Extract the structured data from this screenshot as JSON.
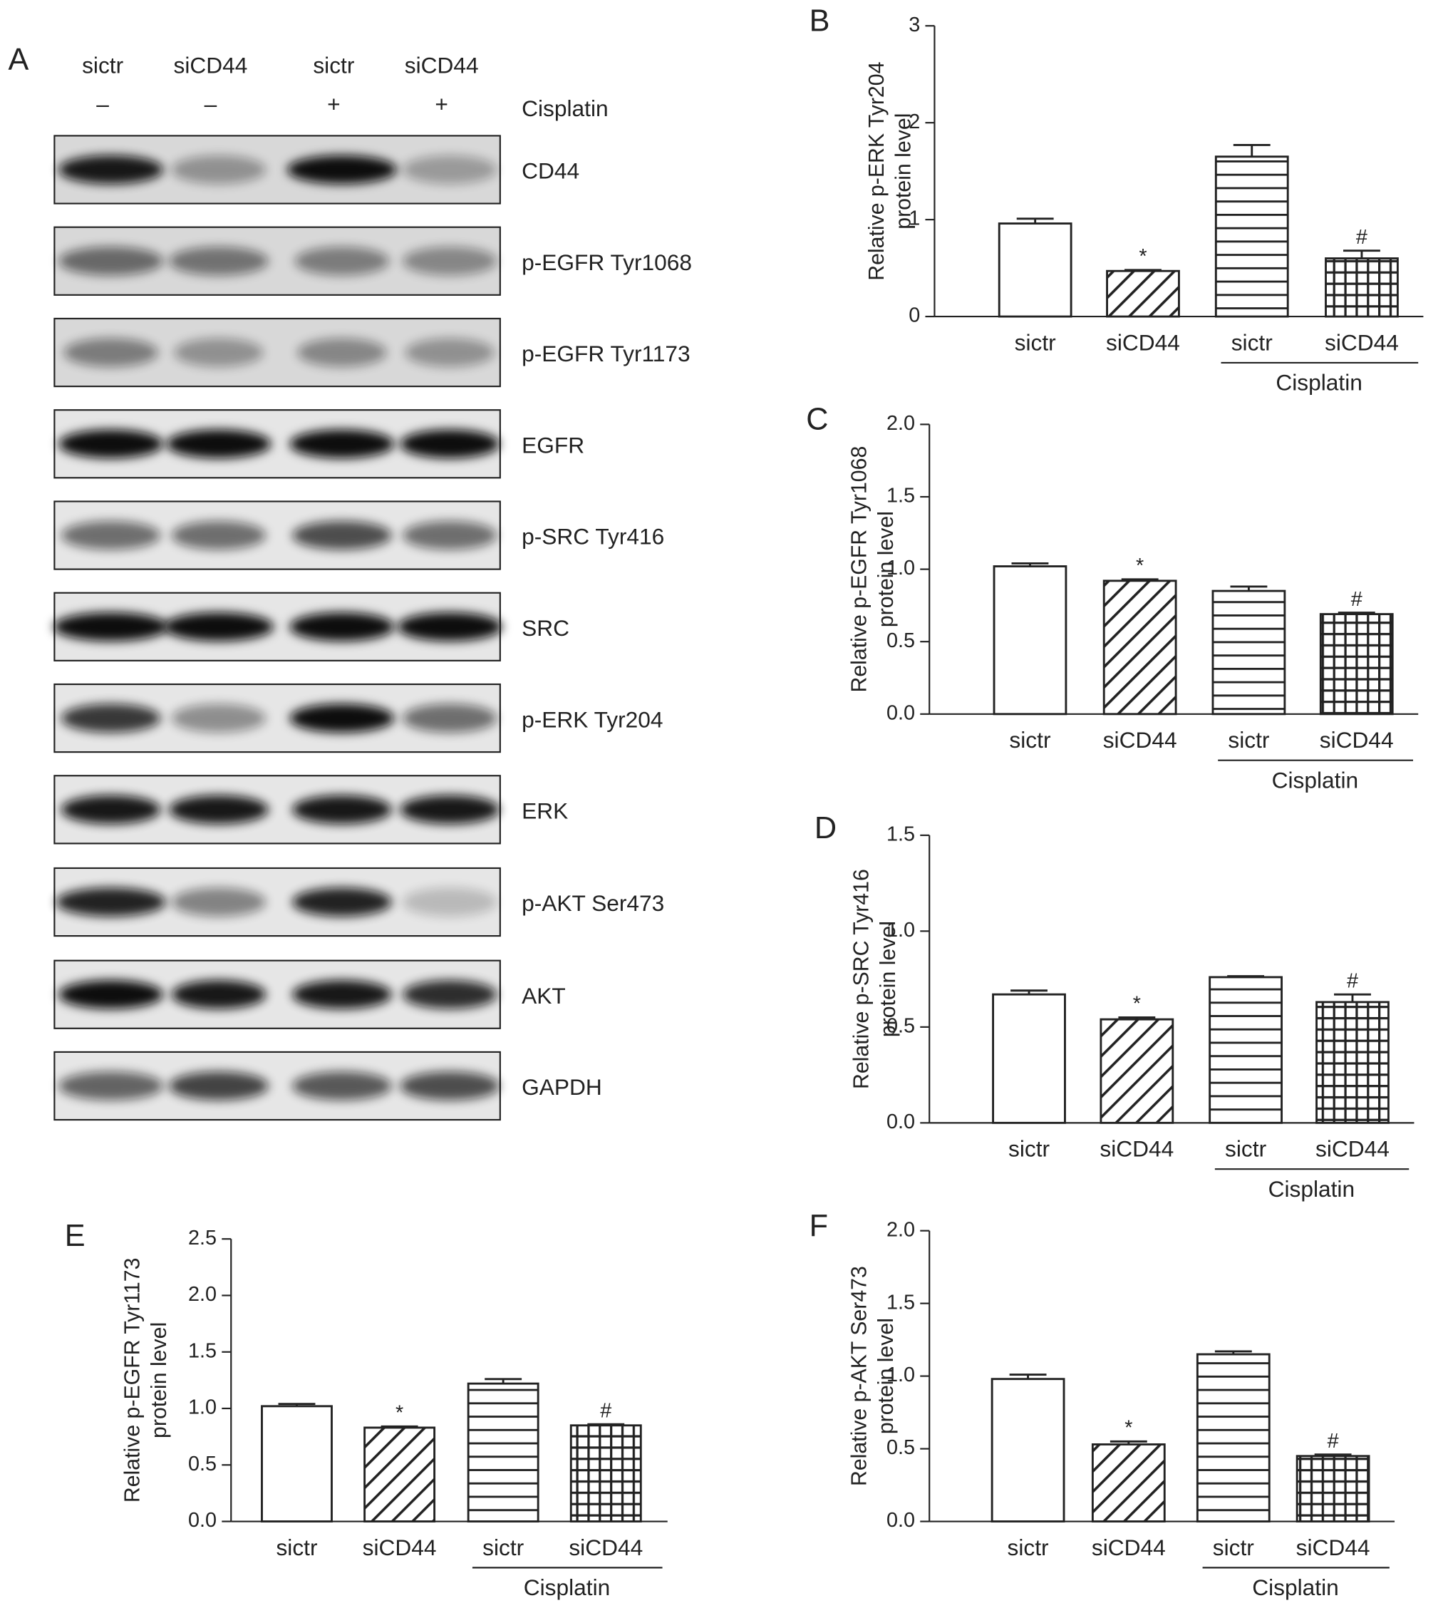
{
  "blot": {
    "panel": "A",
    "lanes": [
      {
        "sirna": "sictr",
        "cisplatin": "–"
      },
      {
        "sirna": "siCD44",
        "cisplatin": "–"
      },
      {
        "sirna": "sictr",
        "cisplatin": "+"
      },
      {
        "sirna": "siCD44",
        "cisplatin": "+"
      }
    ],
    "treatment_label": "Cisplatin",
    "rows": [
      "CD44",
      "p-EGFR Tyr1068",
      "p-EGFR Tyr1173",
      "EGFR",
      "p-SRC Tyr416",
      "SRC",
      "p-ERK Tyr204",
      "ERK",
      "p-AKT Ser473",
      "AKT",
      "GAPDH"
    ]
  },
  "chart_data": [
    {
      "type": "bar",
      "panel": "B",
      "ylabel": [
        "Relative p-ERK Tyr204",
        "protein level"
      ],
      "categories": [
        "sictr",
        "siCD44",
        "sictr",
        "siCD44"
      ],
      "group_label": "Cisplatin",
      "values": [
        0.96,
        0.47,
        1.65,
        0.6
      ],
      "errors": [
        0.05,
        0.01,
        0.12,
        0.08
      ],
      "annotations": [
        null,
        "*",
        null,
        "#"
      ],
      "patterns": [
        "none",
        "diagonal",
        "horizontal",
        "grid"
      ],
      "color": "#222222",
      "ylim": [
        0,
        3
      ],
      "yticks": [
        0,
        1,
        2,
        3
      ]
    },
    {
      "type": "bar",
      "panel": "C",
      "ylabel": [
        "Relative p-EGFR Tyr1068",
        "protein level"
      ],
      "categories": [
        "sictr",
        "siCD44",
        "sictr",
        "siCD44"
      ],
      "group_label": "Cisplatin",
      "values": [
        1.02,
        0.92,
        0.85,
        0.69
      ],
      "errors": [
        0.02,
        0.01,
        0.03,
        0.01
      ],
      "annotations": [
        null,
        "*",
        null,
        "#"
      ],
      "patterns": [
        "none",
        "diagonal",
        "horizontal",
        "grid"
      ],
      "color": "#222222",
      "ylim": [
        0,
        2
      ],
      "yticks": [
        {
          "value": 0,
          "label": "0.0"
        },
        0.5,
        {
          "value": 1,
          "label": "1.0"
        },
        1.5,
        {
          "value": 2,
          "label": "2.0"
        }
      ]
    },
    {
      "type": "bar",
      "panel": "D",
      "ylabel": [
        "Relative p-SRC Tyr416",
        "protein level"
      ],
      "categories": [
        "sictr",
        "siCD44",
        "sictr",
        "siCD44"
      ],
      "group_label": "Cisplatin",
      "values": [
        0.67,
        0.54,
        0.76,
        0.63
      ],
      "errors": [
        0.02,
        0.01,
        0.005,
        0.04
      ],
      "annotations": [
        null,
        "*",
        null,
        "#"
      ],
      "patterns": [
        "none",
        "diagonal",
        "horizontal",
        "grid"
      ],
      "color": "#222222",
      "ylim": [
        0,
        1.5
      ],
      "yticks": [
        {
          "value": 0,
          "label": "0.0"
        },
        0.5,
        {
          "value": 1,
          "label": "1.0"
        },
        1.5
      ]
    },
    {
      "type": "bar",
      "panel": "E",
      "ylabel": [
        "Relative p-EGFR Tyr1173",
        "protein level"
      ],
      "categories": [
        "sictr",
        "siCD44",
        "sictr",
        "siCD44"
      ],
      "group_label": "Cisplatin",
      "values": [
        1.02,
        0.83,
        1.22,
        0.85
      ],
      "errors": [
        0.02,
        0.01,
        0.04,
        0.01
      ],
      "annotations": [
        null,
        "*",
        null,
        "#"
      ],
      "patterns": [
        "none",
        "diagonal",
        "horizontal",
        "grid"
      ],
      "color": "#222222",
      "ylim": [
        0,
        2.5
      ],
      "yticks": [
        {
          "value": 0,
          "label": "0.0"
        },
        0.5,
        {
          "value": 1,
          "label": "1.0"
        },
        1.5,
        {
          "value": 2,
          "label": "2.0"
        },
        2.5
      ]
    },
    {
      "type": "bar",
      "panel": "F",
      "ylabel": [
        "Relative p-AKT Ser473",
        "protein level"
      ],
      "categories": [
        "sictr",
        "siCD44",
        "sictr",
        "siCD44"
      ],
      "group_label": "Cisplatin",
      "values": [
        0.98,
        0.53,
        1.15,
        0.45
      ],
      "errors": [
        0.03,
        0.02,
        0.02,
        0.01
      ],
      "annotations": [
        null,
        "*",
        null,
        "#"
      ],
      "patterns": [
        "none",
        "diagonal",
        "horizontal",
        "grid"
      ],
      "color": "#222222",
      "ylim": [
        0,
        2
      ],
      "yticks": [
        {
          "value": 0,
          "label": "0.0"
        },
        0.5,
        {
          "value": 1,
          "label": "1.0"
        },
        1.5,
        {
          "value": 2,
          "label": "2.0"
        }
      ]
    }
  ]
}
